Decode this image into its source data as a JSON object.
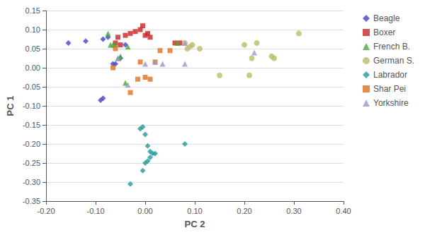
{
  "chart_data": {
    "type": "scatter",
    "xlabel": "PC 2",
    "ylabel": "PC 1",
    "xlim": [
      -0.2,
      0.4
    ],
    "ylim": [
      -0.35,
      0.15
    ],
    "xticks": [
      {
        "value": -0.2,
        "label": "-0.20"
      },
      {
        "value": -0.1,
        "label": "-0.10"
      },
      {
        "value": 0.0,
        "label": "0.00"
      },
      {
        "value": 0.1,
        "label": "0.10"
      },
      {
        "value": 0.2,
        "label": "0.20"
      },
      {
        "value": 0.3,
        "label": "0.30"
      },
      {
        "value": 0.4,
        "label": "0.40"
      }
    ],
    "yticks": [
      -0.35,
      {
        "value": -0.3,
        "label": "-0.30"
      },
      -0.25,
      {
        "value": -0.2,
        "label": "-0.20"
      },
      -0.15,
      {
        "value": -0.1,
        "label": "-0.10"
      },
      -0.05,
      {
        "value": 0.0,
        "label": "0.00"
      },
      0.05,
      {
        "value": 0.1,
        "label": "0.10"
      },
      0.15
    ],
    "grid": true,
    "legend": "upper right",
    "series": [
      {
        "name": "Beagle",
        "color": "#4444CC",
        "marker": "diamond",
        "x": [
          -0.155,
          -0.12,
          -0.085,
          -0.075,
          -0.065,
          -0.06,
          -0.05,
          -0.04,
          -0.085,
          -0.09
        ],
        "y": [
          0.065,
          0.07,
          0.075,
          0.08,
          0.01,
          0.01,
          0.025,
          0.06,
          -0.08,
          -0.085
        ]
      },
      {
        "name": "Boxer",
        "color": "#CC2222",
        "marker": "square",
        "x": [
          -0.06,
          -0.055,
          -0.05,
          -0.04,
          -0.03,
          -0.02,
          -0.01,
          -0.005,
          0.0,
          0.005,
          0.01,
          0.06,
          0.07
        ],
        "y": [
          0.065,
          0.08,
          0.06,
          0.085,
          0.09,
          0.095,
          0.1,
          0.11,
          0.085,
          0.09,
          0.08,
          0.065,
          0.065
        ]
      },
      {
        "name": "French B.",
        "color": "#44AA33",
        "marker": "triangle",
        "x": [
          -0.075,
          -0.07,
          -0.065,
          -0.06,
          -0.055,
          -0.05,
          -0.04,
          -0.035,
          0.065
        ],
        "y": [
          0.09,
          0.06,
          0.06,
          0.06,
          0.025,
          0.03,
          -0.04,
          0.055,
          0.065
        ]
      },
      {
        "name": "German S.",
        "color": "#BBBB66",
        "marker": "circle",
        "x": [
          0.08,
          0.085,
          0.09,
          0.095,
          0.11,
          0.15,
          0.2,
          0.21,
          0.215,
          0.225,
          0.255,
          0.26,
          0.31
        ],
        "y": [
          0.065,
          0.05,
          0.055,
          0.06,
          0.05,
          -0.02,
          0.06,
          -0.02,
          0.025,
          0.065,
          0.03,
          0.025,
          0.09
        ]
      },
      {
        "name": "Labrador",
        "color": "#229999",
        "marker": "diamond",
        "x": [
          -0.005,
          -0.01,
          0.0,
          0.005,
          0.01,
          0.015,
          0.02,
          0.01,
          0.005,
          0.0,
          -0.005,
          0.08,
          -0.03
        ],
        "y": [
          -0.155,
          -0.16,
          -0.175,
          -0.205,
          -0.22,
          -0.225,
          -0.225,
          -0.235,
          -0.245,
          -0.25,
          -0.27,
          -0.2,
          -0.305
        ]
      },
      {
        "name": "Shar Pei",
        "color": "#E07020",
        "marker": "square",
        "x": [
          -0.065,
          -0.06,
          -0.03,
          -0.01,
          0.0,
          0.01,
          0.02,
          0.03,
          0.05,
          -0.015
        ],
        "y": [
          0.0,
          0.05,
          -0.065,
          0.015,
          -0.025,
          -0.03,
          0.015,
          0.045,
          0.045,
          -0.03
        ]
      },
      {
        "name": "Yorkshire",
        "color": "#9999CC",
        "marker": "triangle",
        "x": [
          -0.055,
          -0.035,
          0.0,
          0.02,
          0.035,
          0.08,
          0.08,
          0.22
        ],
        "y": [
          0.025,
          -0.045,
          0.01,
          0.015,
          0.01,
          0.065,
          0.01,
          0.04
        ]
      }
    ]
  }
}
